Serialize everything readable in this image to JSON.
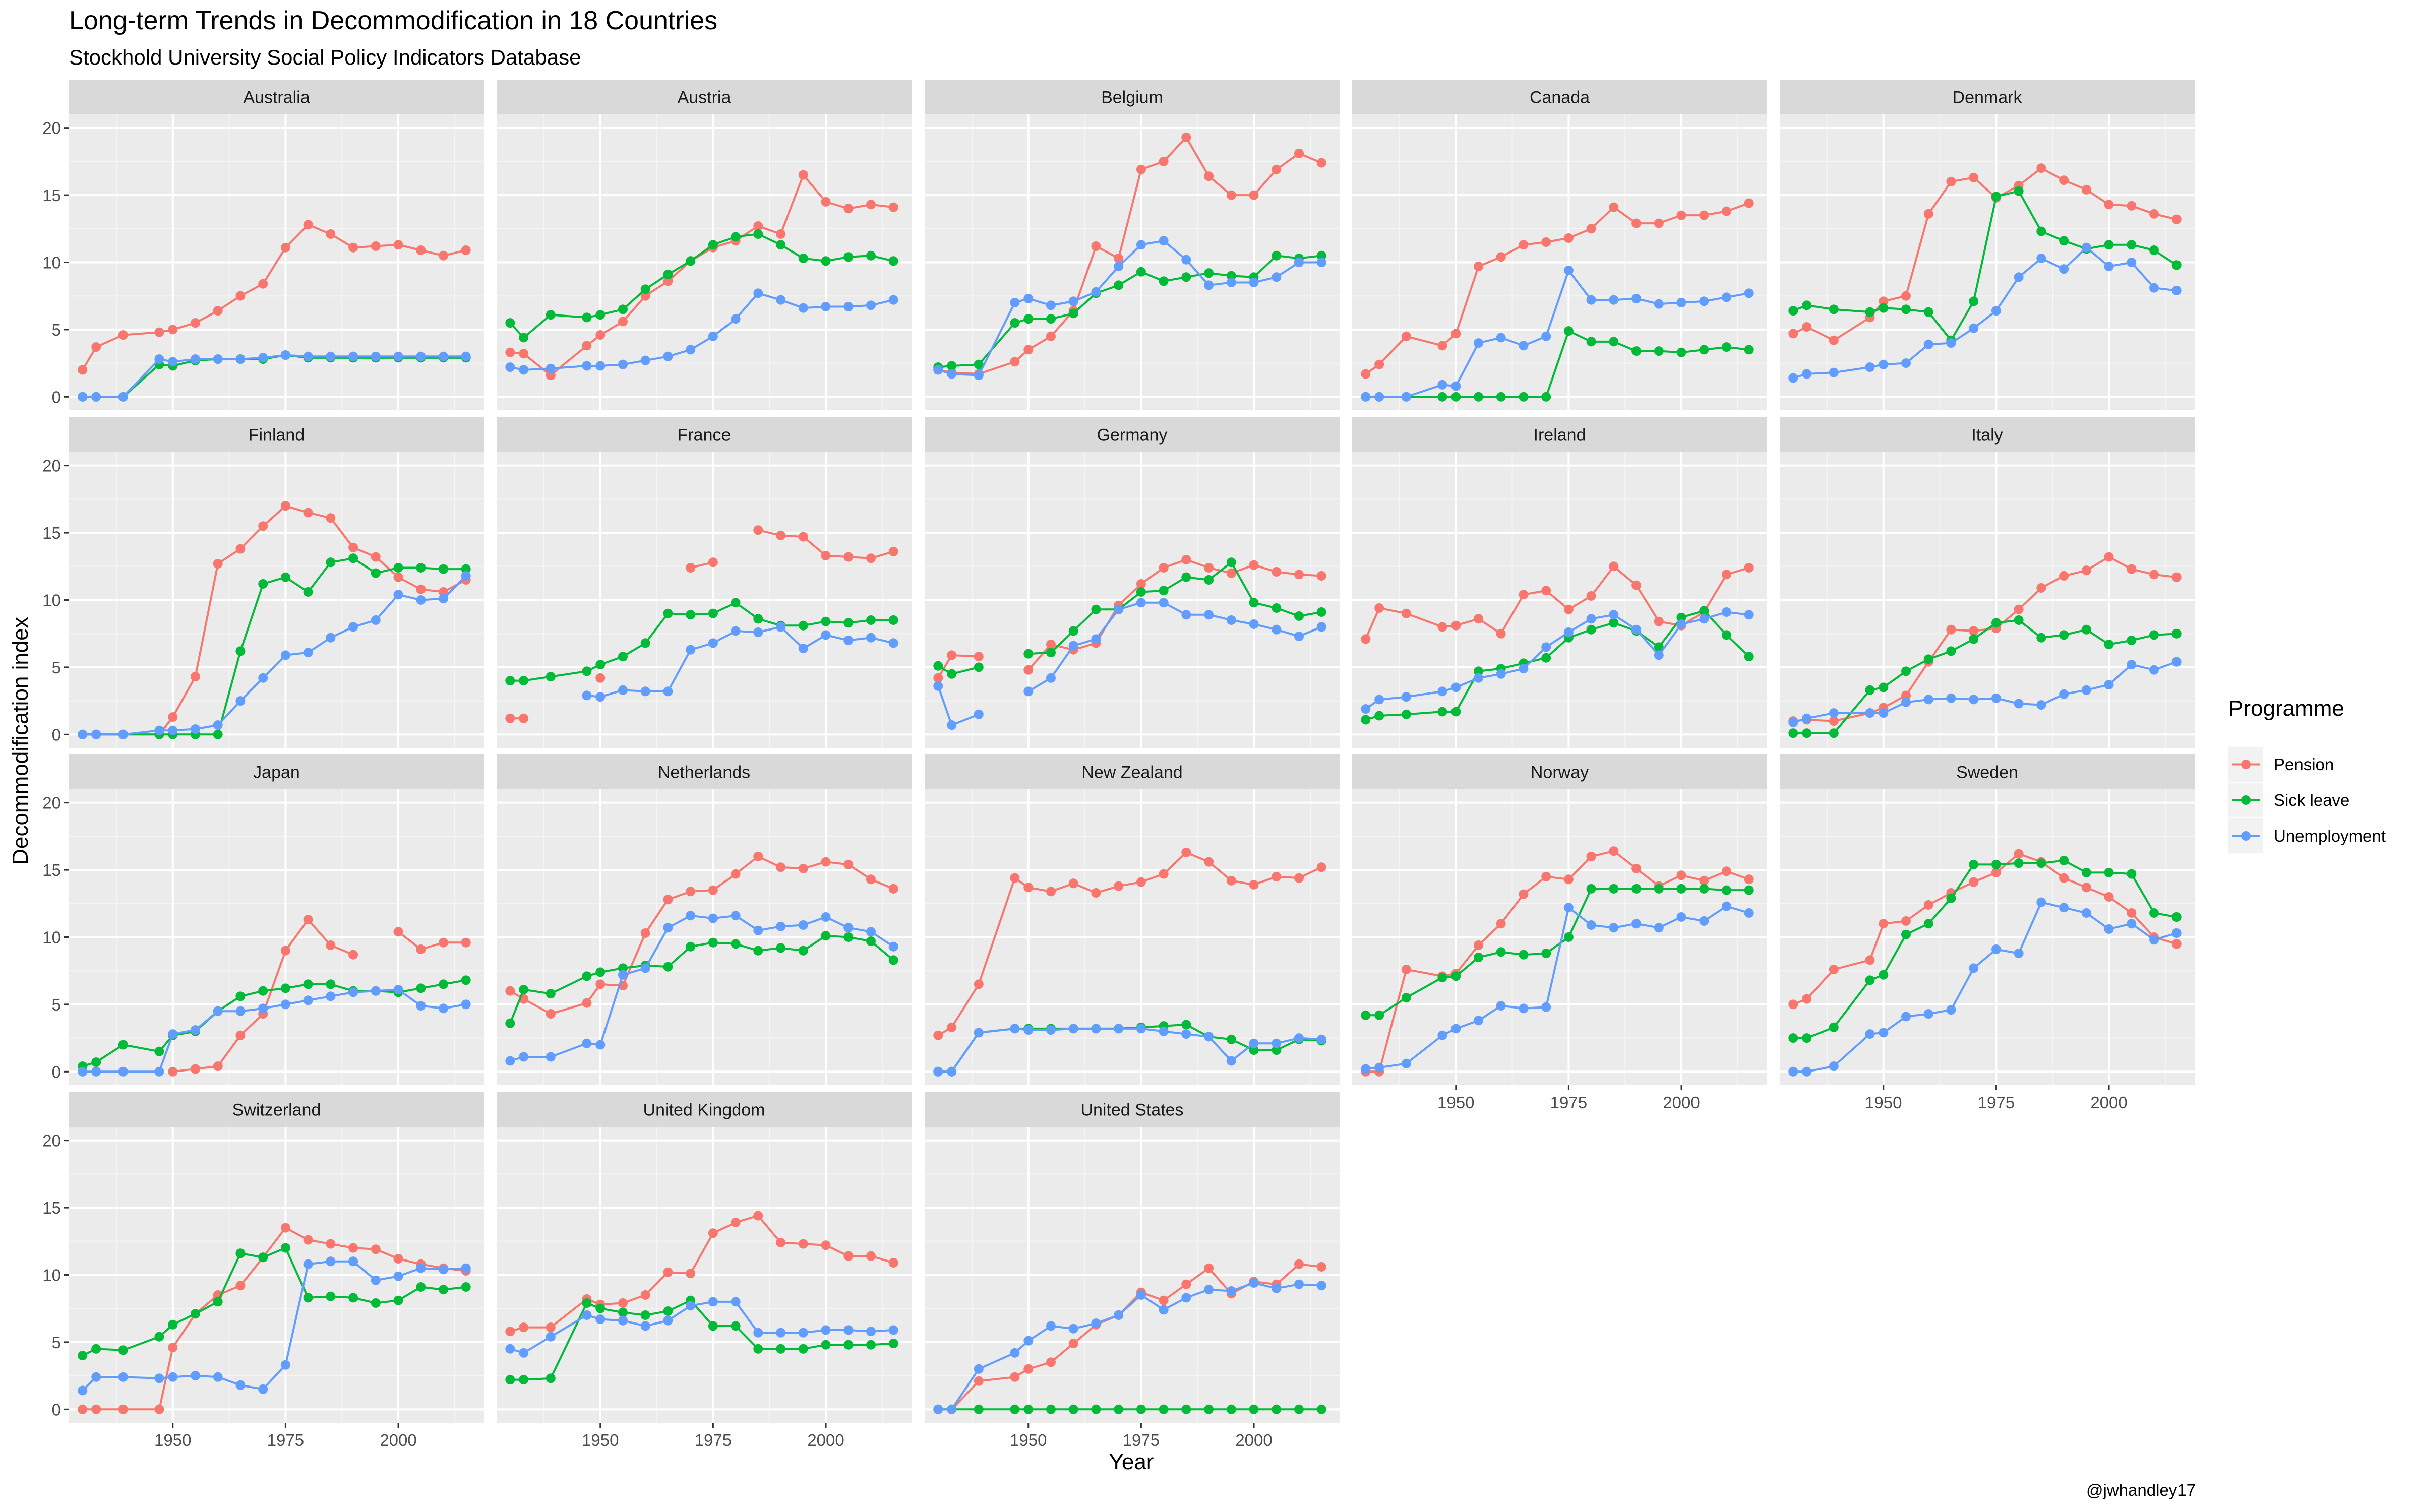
{
  "title": "Long-term Trends in Decommodification in 18 Countries",
  "subtitle": "Stockhold University Social Policy Indicators Database",
  "caption": "@jwhandley17",
  "chart_data": {
    "type": "line",
    "facet_layout": "5 columns x 4 rows (small multiples)",
    "xlabel": "Year",
    "ylabel": "Decommodification index",
    "xlim": [
      1927,
      2019
    ],
    "ylim": [
      -1,
      21
    ],
    "x_ticks": [
      1950,
      1975,
      2000
    ],
    "y_ticks": [
      0,
      5,
      10,
      15,
      20
    ],
    "grid": true,
    "legend": {
      "title": "Programme",
      "position": "right"
    },
    "x": [
      1930,
      1933,
      1939,
      1947,
      1950,
      1955,
      1960,
      1965,
      1970,
      1975,
      1980,
      1985,
      1990,
      1995,
      2000,
      2005,
      2010,
      2015
    ],
    "series_colors": {
      "Pension": "#F8766D",
      "Sick leave": "#00BA38",
      "Unemployment": "#619CFF"
    },
    "series_names": [
      "Pension",
      "Sick leave",
      "Unemployment"
    ],
    "panels": [
      {
        "country": "Australia",
        "Pension": [
          2.0,
          3.7,
          4.6,
          4.8,
          5.0,
          5.5,
          6.4,
          7.5,
          8.4,
          11.1,
          12.8,
          12.1,
          11.1,
          11.2,
          11.3,
          10.9,
          10.5,
          10.9
        ],
        "Sick leave": [
          0.0,
          0.0,
          0.0,
          2.4,
          2.3,
          2.7,
          2.8,
          2.8,
          2.8,
          3.1,
          2.9,
          2.9,
          2.9,
          2.9,
          2.9,
          2.9,
          2.9,
          2.9
        ],
        "Unemployment": [
          0.0,
          0.0,
          0.0,
          2.8,
          2.6,
          2.8,
          2.8,
          2.8,
          2.9,
          3.1,
          3.0,
          3.0,
          3.0,
          3.0,
          3.0,
          3.0,
          3.0,
          3.0
        ]
      },
      {
        "country": "Austria",
        "Pension": [
          3.3,
          3.2,
          1.6,
          3.8,
          4.6,
          5.6,
          7.5,
          8.6,
          10.1,
          11.1,
          11.6,
          12.7,
          12.1,
          16.5,
          14.5,
          14.0,
          14.3,
          14.1
        ],
        "Sick leave": [
          5.5,
          4.4,
          6.1,
          5.9,
          6.1,
          6.5,
          8.0,
          9.1,
          10.1,
          11.3,
          11.9,
          12.1,
          11.3,
          10.3,
          10.1,
          10.4,
          10.5,
          10.1
        ],
        "Unemployment": [
          2.2,
          2.0,
          2.1,
          2.3,
          2.3,
          2.4,
          2.7,
          3.0,
          3.5,
          4.5,
          5.8,
          7.7,
          7.2,
          6.6,
          6.7,
          6.7,
          6.8,
          7.2
        ]
      },
      {
        "country": "Belgium",
        "Pension": [
          2.0,
          1.8,
          1.7,
          2.6,
          3.5,
          4.5,
          6.4,
          11.2,
          10.3,
          16.9,
          17.5,
          19.3,
          16.4,
          15.0,
          15.0,
          16.9,
          18.1,
          17.4
        ],
        "Sick leave": [
          2.2,
          2.3,
          2.4,
          5.5,
          5.8,
          5.8,
          6.2,
          7.7,
          8.3,
          9.3,
          8.6,
          8.9,
          9.2,
          9.0,
          8.9,
          10.5,
          10.3,
          10.5
        ],
        "Unemployment": [
          2.0,
          1.7,
          1.6,
          7.0,
          7.3,
          6.8,
          7.1,
          7.8,
          9.7,
          11.3,
          11.6,
          10.2,
          8.3,
          8.5,
          8.5,
          8.9,
          10.0,
          10.0
        ]
      },
      {
        "country": "Canada",
        "Pension": [
          1.7,
          2.4,
          4.5,
          3.8,
          4.7,
          9.7,
          10.4,
          11.3,
          11.5,
          11.8,
          12.5,
          14.1,
          12.9,
          12.9,
          13.5,
          13.5,
          13.8,
          14.4
        ],
        "Sick leave": [
          0.0,
          0.0,
          0.0,
          0.0,
          0.0,
          0.0,
          0.0,
          0.0,
          0.0,
          4.9,
          4.1,
          4.1,
          3.4,
          3.4,
          3.3,
          3.5,
          3.7,
          3.5
        ],
        "Unemployment": [
          0.0,
          0.0,
          0.0,
          0.9,
          0.8,
          4.0,
          4.4,
          3.8,
          4.5,
          9.4,
          7.2,
          7.2,
          7.3,
          6.9,
          7.0,
          7.1,
          7.4,
          7.7
        ]
      },
      {
        "country": "Denmark",
        "Pension": [
          4.7,
          5.2,
          4.2,
          5.9,
          7.1,
          7.5,
          13.6,
          16.0,
          16.3,
          14.8,
          15.7,
          17.0,
          16.1,
          15.4,
          14.3,
          14.2,
          13.6,
          13.2
        ],
        "Sick leave": [
          6.4,
          6.8,
          6.5,
          6.3,
          6.6,
          6.5,
          6.3,
          4.2,
          7.1,
          14.9,
          15.3,
          12.3,
          11.6,
          11.0,
          11.3,
          11.3,
          10.9,
          9.8
        ],
        "Unemployment": [
          1.4,
          1.7,
          1.8,
          2.2,
          2.4,
          2.5,
          3.9,
          4.0,
          5.1,
          6.4,
          8.9,
          10.3,
          9.5,
          11.1,
          9.7,
          10.0,
          8.1,
          7.9
        ]
      },
      {
        "country": "Finland",
        "Pension": [
          0.0,
          0.0,
          0.0,
          0.0,
          1.3,
          4.3,
          12.7,
          13.8,
          15.5,
          17.0,
          16.5,
          16.1,
          13.9,
          13.2,
          11.7,
          10.8,
          10.6,
          11.5
        ],
        "Sick leave": [
          0.0,
          0.0,
          0.0,
          0.0,
          0.0,
          0.0,
          0.0,
          6.2,
          11.2,
          11.7,
          10.6,
          12.8,
          13.1,
          12.0,
          12.4,
          12.4,
          12.3,
          12.3
        ],
        "Unemployment": [
          0.0,
          0.0,
          0.0,
          0.3,
          0.3,
          0.4,
          0.7,
          2.5,
          4.2,
          5.9,
          6.1,
          7.2,
          8.0,
          8.5,
          10.4,
          10.0,
          10.1,
          11.8
        ]
      },
      {
        "country": "France",
        "Pension": [
          1.2,
          1.2,
          null,
          null,
          4.2,
          null,
          null,
          null,
          12.4,
          12.8,
          null,
          15.2,
          14.8,
          14.7,
          13.3,
          13.2,
          13.1,
          13.6
        ],
        "Sick leave": [
          4.0,
          4.0,
          4.3,
          4.7,
          5.2,
          5.8,
          6.8,
          9.0,
          8.9,
          9.0,
          9.8,
          8.6,
          8.1,
          8.1,
          8.4,
          8.3,
          8.5,
          8.5
        ],
        "Unemployment": [
          null,
          null,
          null,
          2.9,
          2.8,
          3.3,
          3.2,
          3.2,
          6.3,
          6.8,
          7.7,
          7.6,
          8.0,
          6.4,
          7.4,
          7.0,
          7.2,
          6.8
        ]
      },
      {
        "country": "Germany",
        "Pension": [
          4.2,
          5.9,
          5.8,
          null,
          4.8,
          6.7,
          6.3,
          6.8,
          9.6,
          11.2,
          12.4,
          13.0,
          12.4,
          12.0,
          12.6,
          12.1,
          11.9,
          11.8
        ],
        "Sick leave": [
          5.1,
          4.5,
          5.0,
          null,
          6.0,
          6.1,
          7.7,
          9.3,
          9.3,
          10.6,
          10.7,
          11.7,
          11.5,
          12.8,
          9.8,
          9.4,
          8.8,
          9.1
        ],
        "Unemployment": [
          3.6,
          0.7,
          1.5,
          null,
          3.2,
          4.2,
          6.6,
          7.1,
          9.3,
          9.8,
          9.8,
          8.9,
          8.9,
          8.5,
          8.2,
          7.8,
          7.3,
          8.0
        ]
      },
      {
        "country": "Ireland",
        "Pension": [
          7.1,
          9.4,
          9.0,
          8.0,
          8.1,
          8.6,
          7.5,
          10.4,
          10.7,
          9.3,
          10.3,
          12.5,
          11.1,
          8.4,
          8.1,
          9.1,
          11.9,
          12.4
        ],
        "Sick leave": [
          1.1,
          1.4,
          1.5,
          1.7,
          1.7,
          4.7,
          4.9,
          5.3,
          5.7,
          7.2,
          7.8,
          8.3,
          7.7,
          6.5,
          8.7,
          9.2,
          7.4,
          5.8
        ],
        "Unemployment": [
          1.9,
          2.6,
          2.8,
          3.2,
          3.5,
          4.2,
          4.5,
          4.9,
          6.5,
          7.6,
          8.6,
          8.9,
          7.8,
          5.9,
          8.2,
          8.6,
          9.1,
          8.9
        ]
      },
      {
        "country": "Italy",
        "Pension": [
          1.0,
          1.1,
          1.0,
          1.6,
          2.0,
          2.9,
          5.4,
          7.8,
          7.7,
          7.9,
          9.3,
          10.9,
          11.8,
          12.2,
          13.2,
          12.3,
          11.9,
          11.7
        ],
        "Sick leave": [
          0.1,
          0.1,
          0.1,
          3.3,
          3.5,
          4.7,
          5.6,
          6.2,
          7.1,
          8.3,
          8.5,
          7.2,
          7.4,
          7.8,
          6.7,
          7.0,
          7.4,
          7.5
        ],
        "Unemployment": [
          0.9,
          1.2,
          1.6,
          1.6,
          1.6,
          2.4,
          2.6,
          2.7,
          2.6,
          2.7,
          2.3,
          2.2,
          3.0,
          3.3,
          3.7,
          5.2,
          4.8,
          5.4
        ]
      },
      {
        "country": "Japan",
        "Pension": [
          null,
          null,
          null,
          null,
          0.0,
          0.2,
          0.4,
          2.7,
          4.3,
          9.0,
          11.3,
          9.4,
          8.7,
          null,
          10.4,
          9.1,
          9.6,
          9.6
        ],
        "Sick leave": [
          0.4,
          0.7,
          2.0,
          1.5,
          2.7,
          3.0,
          4.5,
          5.6,
          6.0,
          6.2,
          6.5,
          6.5,
          6.0,
          6.0,
          5.9,
          6.2,
          6.5,
          6.8
        ],
        "Unemployment": [
          0.0,
          0.0,
          0.0,
          0.0,
          2.8,
          3.1,
          4.5,
          4.5,
          4.7,
          5.0,
          5.3,
          5.6,
          5.9,
          6.0,
          6.1,
          4.9,
          4.7,
          5.0
        ]
      },
      {
        "country": "Netherlands",
        "Pension": [
          6.0,
          5.4,
          4.3,
          5.1,
          6.5,
          6.4,
          10.3,
          12.8,
          13.4,
          13.5,
          14.7,
          16.0,
          15.2,
          15.1,
          15.6,
          15.4,
          14.3,
          13.6
        ],
        "Sick leave": [
          3.6,
          6.1,
          5.8,
          7.1,
          7.4,
          7.7,
          7.9,
          7.8,
          9.3,
          9.6,
          9.5,
          9.0,
          9.2,
          9.0,
          10.1,
          10.0,
          9.7,
          8.3
        ],
        "Unemployment": [
          0.8,
          1.1,
          1.1,
          2.1,
          2.0,
          7.2,
          7.7,
          10.7,
          11.6,
          11.4,
          11.6,
          10.5,
          10.8,
          10.9,
          11.5,
          10.7,
          10.4,
          9.3
        ]
      },
      {
        "country": "New Zealand",
        "Pension": [
          2.7,
          3.3,
          6.5,
          14.4,
          13.7,
          13.4,
          14.0,
          13.3,
          13.8,
          14.1,
          14.7,
          16.3,
          15.6,
          14.2,
          13.9,
          14.5,
          14.4,
          15.2
        ],
        "Sick leave": [
          0.0,
          0.0,
          2.9,
          3.2,
          3.2,
          3.2,
          3.2,
          3.2,
          3.2,
          3.3,
          3.4,
          3.5,
          2.6,
          2.4,
          1.6,
          1.6,
          2.4,
          2.3
        ],
        "Unemployment": [
          0.0,
          0.0,
          2.9,
          3.2,
          3.1,
          3.1,
          3.2,
          3.2,
          3.2,
          3.2,
          3.0,
          2.8,
          2.6,
          0.8,
          2.1,
          2.1,
          2.5,
          2.4
        ]
      },
      {
        "country": "Norway",
        "Pension": [
          0.0,
          0.0,
          7.6,
          7.1,
          7.3,
          9.4,
          11.0,
          13.2,
          14.5,
          14.3,
          16.0,
          16.4,
          15.1,
          13.8,
          14.6,
          14.2,
          14.9,
          14.3
        ],
        "Sick leave": [
          4.2,
          4.2,
          5.5,
          7.0,
          7.1,
          8.5,
          8.9,
          8.7,
          8.8,
          10.0,
          13.6,
          13.6,
          13.6,
          13.6,
          13.6,
          13.6,
          13.5,
          13.5
        ],
        "Unemployment": [
          0.2,
          0.3,
          0.6,
          2.7,
          3.2,
          3.8,
          4.9,
          4.7,
          4.8,
          12.2,
          10.9,
          10.7,
          11.0,
          10.7,
          11.5,
          11.2,
          12.3,
          11.8
        ]
      },
      {
        "country": "Sweden",
        "Pension": [
          5.0,
          5.4,
          7.6,
          8.3,
          11.0,
          11.2,
          12.4,
          13.3,
          14.1,
          14.8,
          16.2,
          15.6,
          14.4,
          13.7,
          13.0,
          11.8,
          10.0,
          9.5
        ],
        "Sick leave": [
          2.5,
          2.5,
          3.3,
          6.8,
          7.2,
          10.2,
          11.0,
          12.9,
          15.4,
          15.4,
          15.5,
          15.5,
          15.7,
          14.8,
          14.8,
          14.7,
          11.8,
          11.5
        ],
        "Unemployment": [
          0.0,
          0.0,
          0.4,
          2.8,
          2.9,
          4.1,
          4.3,
          4.6,
          7.7,
          9.1,
          8.8,
          12.6,
          12.2,
          11.8,
          10.6,
          11.0,
          9.8,
          10.3
        ]
      },
      {
        "country": "Switzerland",
        "Pension": [
          0.0,
          0.0,
          0.0,
          0.0,
          4.6,
          7.1,
          8.5,
          9.2,
          11.3,
          13.5,
          12.6,
          12.3,
          12.0,
          11.9,
          11.2,
          10.8,
          10.5,
          10.3
        ],
        "Sick leave": [
          4.0,
          4.5,
          4.4,
          5.4,
          6.3,
          7.1,
          8.0,
          11.6,
          11.3,
          12.0,
          8.3,
          8.4,
          8.3,
          7.9,
          8.1,
          9.1,
          8.9,
          9.1
        ],
        "Unemployment": [
          1.4,
          2.4,
          2.4,
          2.3,
          2.4,
          2.5,
          2.4,
          1.8,
          1.5,
          3.3,
          10.8,
          11.0,
          11.0,
          9.6,
          9.9,
          10.5,
          10.4,
          10.5
        ]
      },
      {
        "country": "United Kingdom",
        "Pension": [
          5.8,
          6.1,
          6.1,
          8.2,
          7.8,
          7.9,
          8.5,
          10.2,
          10.1,
          13.1,
          13.9,
          14.4,
          12.4,
          12.3,
          12.2,
          11.4,
          11.4,
          10.9
        ],
        "Sick leave": [
          2.2,
          2.2,
          2.3,
          7.9,
          7.5,
          7.2,
          7.0,
          7.3,
          8.1,
          6.2,
          6.2,
          4.5,
          4.5,
          4.5,
          4.8,
          4.8,
          4.8,
          4.9
        ],
        "Unemployment": [
          4.5,
          4.2,
          5.4,
          7.0,
          6.7,
          6.6,
          6.2,
          6.6,
          7.7,
          8.0,
          8.0,
          5.7,
          5.7,
          5.7,
          5.9,
          5.9,
          5.8,
          5.9
        ]
      },
      {
        "country": "United States",
        "Pension": [
          0.0,
          0.0,
          2.1,
          2.4,
          3.0,
          3.5,
          4.9,
          6.3,
          7.0,
          8.7,
          8.1,
          9.3,
          10.5,
          8.6,
          9.5,
          9.3,
          10.8,
          10.6
        ],
        "Sick leave": [
          0.0,
          0.0,
          0.0,
          0.0,
          0.0,
          0.0,
          0.0,
          0.0,
          0.0,
          0.0,
          0.0,
          0.0,
          0.0,
          0.0,
          0.0,
          0.0,
          0.0,
          0.0
        ],
        "Unemployment": [
          0.0,
          0.0,
          3.0,
          4.2,
          5.1,
          6.2,
          6.0,
          6.4,
          7.0,
          8.5,
          7.4,
          8.3,
          8.9,
          8.8,
          9.4,
          9.0,
          9.3,
          9.2
        ]
      }
    ]
  }
}
